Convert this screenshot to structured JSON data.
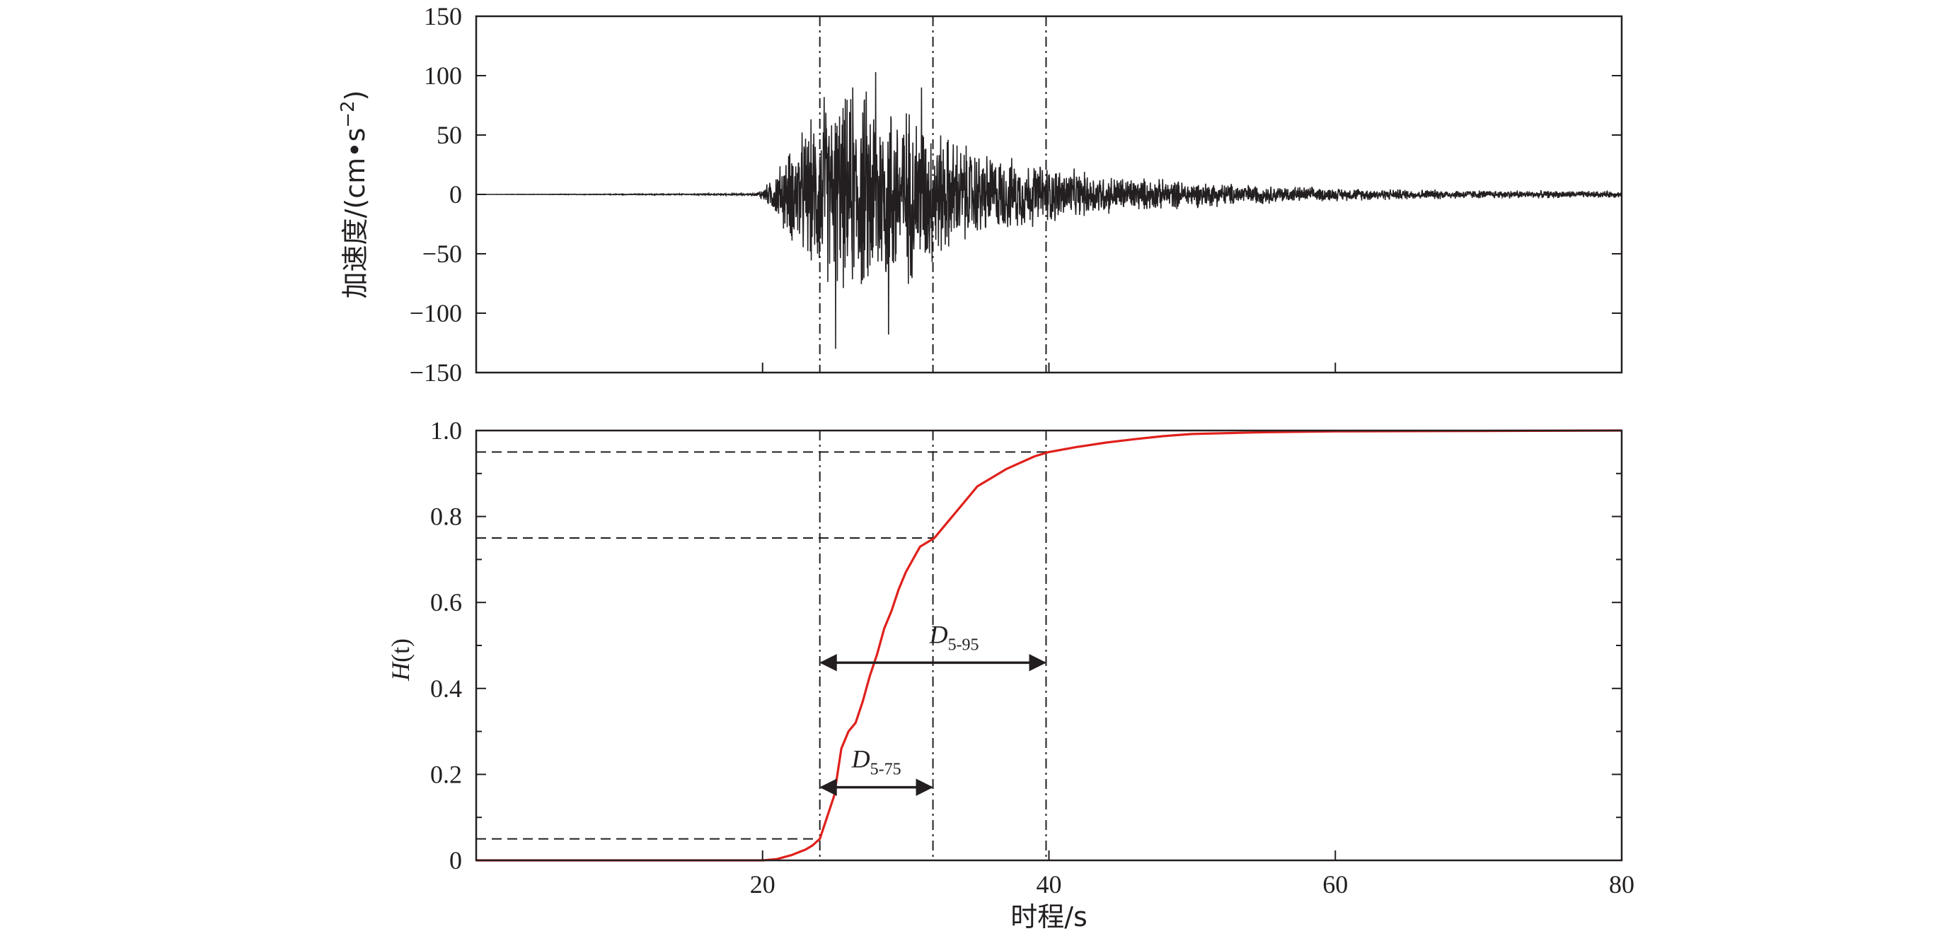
{
  "chart_data": [
    {
      "type": "line",
      "ylabel_main": "加速度/",
      "ylabel_unit": "(cm•s",
      "ylabel_exp": "−2",
      "ylabel_close": ")",
      "ylim": [
        -150,
        150
      ],
      "xlim": [
        0,
        80
      ],
      "yticks": [
        {
          "v": 150,
          "label": "150"
        },
        {
          "v": 100,
          "label": "100"
        },
        {
          "v": 50,
          "label": "50"
        },
        {
          "v": 0,
          "label": "0"
        },
        {
          "v": -50,
          "label": "−50"
        },
        {
          "v": -100,
          "label": "−100"
        },
        {
          "v": -150,
          "label": "−150"
        }
      ],
      "xticks": [
        20,
        40,
        60
      ],
      "series": [
        {
          "color": "#231f20",
          "envelope": [
            [
              0,
              0
            ],
            [
              19.5,
              0.8
            ],
            [
              20.5,
              12
            ],
            [
              21.5,
              35
            ],
            [
              22.5,
              55
            ],
            [
              23.5,
              70
            ],
            [
              24.5,
              85
            ],
            [
              25.5,
              90
            ],
            [
              26.5,
              95
            ],
            [
              27.5,
              100
            ],
            [
              28.5,
              92
            ],
            [
              29.5,
              88
            ],
            [
              30.5,
              82
            ],
            [
              31.5,
              70
            ],
            [
              32.5,
              60
            ],
            [
              33.5,
              52
            ],
            [
              34.5,
              45
            ],
            [
              35.5,
              40
            ],
            [
              36.5,
              36
            ],
            [
              38,
              32
            ],
            [
              40,
              28
            ],
            [
              42,
              22
            ],
            [
              45,
              17
            ],
            [
              48,
              14
            ],
            [
              52,
              11
            ],
            [
              56,
              8
            ],
            [
              60,
              6
            ],
            [
              65,
              5
            ],
            [
              70,
              4
            ],
            [
              75,
              3.5
            ],
            [
              80,
              3
            ]
          ],
          "peaks": [
            {
              "x": 25.1,
              "y": -130
            },
            {
              "x": 27.9,
              "y": 103
            },
            {
              "x": 24.3,
              "y": 82
            },
            {
              "x": 26.3,
              "y": 90
            },
            {
              "x": 28.8,
              "y": -118
            },
            {
              "x": 31.1,
              "y": 90
            }
          ]
        }
      ],
      "vlines": [
        24.0,
        31.9,
        39.8
      ]
    },
    {
      "type": "line",
      "ylabel_H": "H",
      "ylabel_t": "(t)",
      "xlabel": "时程/s",
      "ylim": [
        0,
        1.0
      ],
      "xlim": [
        0,
        80
      ],
      "yticks": [
        {
          "v": 0,
          "label": "0"
        },
        {
          "v": 0.2,
          "label": "0.2"
        },
        {
          "v": 0.4,
          "label": "0.4"
        },
        {
          "v": 0.6,
          "label": "0.6"
        },
        {
          "v": 0.8,
          "label": "0.8"
        },
        {
          "v": 1.0,
          "label": "1.0"
        }
      ],
      "xticks": [
        {
          "v": 20,
          "label": "20"
        },
        {
          "v": 40,
          "label": "40"
        },
        {
          "v": 60,
          "label": "60"
        },
        {
          "v": 80,
          "label": "80"
        }
      ],
      "series": [
        {
          "color": "#e0201b",
          "x": [
            0,
            20,
            21,
            22,
            23,
            23.5,
            24,
            24.5,
            25,
            25.5,
            26,
            26.5,
            27,
            27.5,
            28,
            28.5,
            29,
            29.5,
            30,
            30.5,
            31,
            31.5,
            32,
            33,
            34,
            35,
            36,
            37,
            38,
            39,
            40,
            42,
            44,
            46,
            48,
            50,
            55,
            60,
            70,
            80
          ],
          "y": [
            0,
            0,
            0.003,
            0.012,
            0.025,
            0.035,
            0.05,
            0.1,
            0.15,
            0.26,
            0.3,
            0.32,
            0.37,
            0.43,
            0.48,
            0.54,
            0.58,
            0.63,
            0.67,
            0.7,
            0.73,
            0.74,
            0.75,
            0.79,
            0.83,
            0.87,
            0.89,
            0.91,
            0.925,
            0.94,
            0.95,
            0.962,
            0.972,
            0.98,
            0.987,
            0.992,
            0.996,
            0.998,
            0.999,
            1.0
          ]
        }
      ],
      "hlines": [
        0.05,
        0.75,
        0.95
      ],
      "vlines": [
        24.0,
        31.9,
        39.8
      ],
      "annotations": [
        {
          "name": "D5-95",
          "D": "D",
          "sub": "5-95",
          "x1": 24.0,
          "x2": 39.8,
          "y": 0.46
        },
        {
          "name": "D5-75",
          "D": "D",
          "sub": "5-75",
          "x1": 24.0,
          "x2": 31.9,
          "y": 0.17
        }
      ]
    }
  ]
}
